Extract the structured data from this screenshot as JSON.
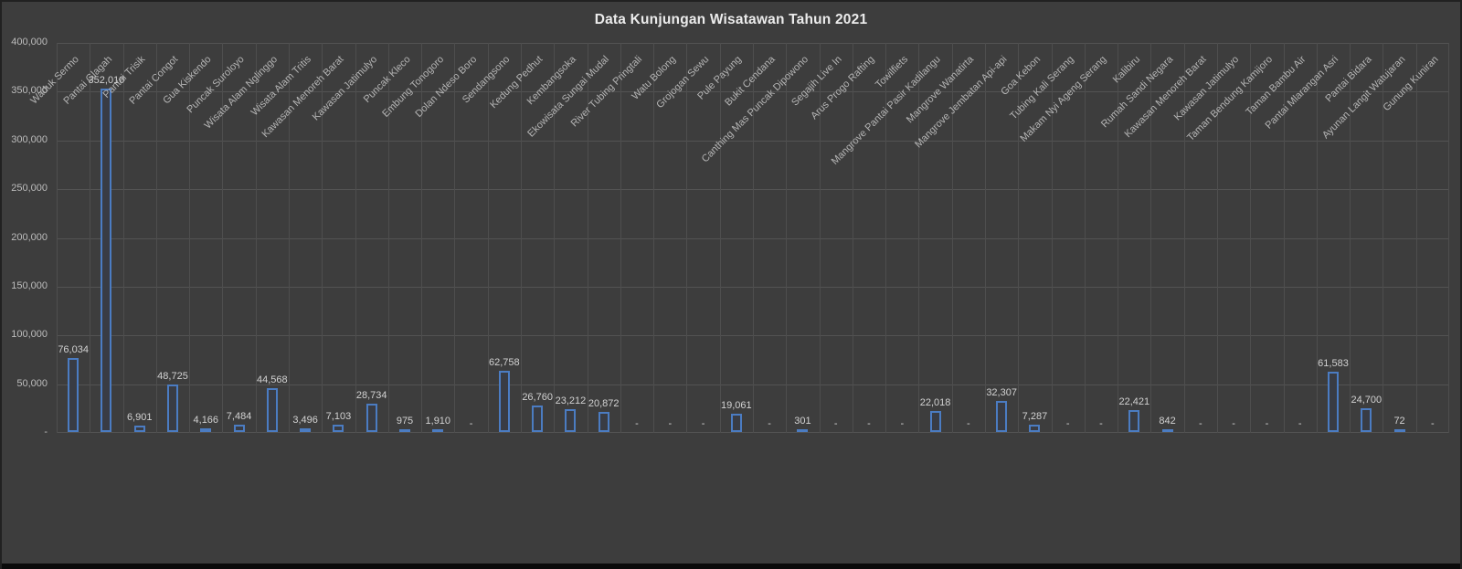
{
  "title": "Data Kunjungan Wisatawan Tahun 2021",
  "colors": {
    "background": "#3d3d3d",
    "frame_border": "#212121",
    "bottom_band": "#0b0b0b",
    "gridline": "#535353",
    "bar_border": "#4b7cc2",
    "bar_fill": "#393c44",
    "title_text": "#ececec",
    "axis_text": "#bcbcbc",
    "value_text": "#d2d2d2"
  },
  "chart_data": {
    "type": "bar",
    "title": "Data Kunjungan Wisatawan Tahun 2021",
    "xlabel": "",
    "ylabel": "",
    "ylim": [
      0,
      400000
    ],
    "y_tick_labels_top_down": [
      "400,000",
      "350,000",
      "300,000",
      "250,000",
      "200,000",
      "150,000",
      "100,000",
      "50,000",
      "-"
    ],
    "grid": true,
    "legend": false,
    "categories": [
      "Waduk Sermo",
      "Pantai Glagah",
      "Pantai Trisik",
      "Pantai Congot",
      "Gua Kiskendo",
      "Puncak Suroloyo",
      "Wisata Alam Nglinggo",
      "Wisata Alam Tritis",
      "Kawasan Menoreh Barat",
      "Kawasan Jatimulyo",
      "Puncak Kleco",
      "Embung Tonogoro",
      "Dolan Ndeso Boro",
      "Sendangsono",
      "Kedung Pedhut",
      "Kembangsoka",
      "Ekowisata Sungai Mudal",
      "River Tubing Pringtali",
      "Watu Bolong",
      "Grojogan Sewu",
      "Pule Payung",
      "Bukit Cendana",
      "Canthing Mas Puncak Dipowono",
      "Segajih Live In",
      "Arus Progo Rafting",
      "Towilfiets",
      "Mangrove Pantai Pasir Kadilangu",
      "Mangrove Wanatirta",
      "Mangrove Jembatan Api-api",
      "Goa Kebon",
      "Tubing Kali Serang",
      "Makam Nyi Ageng Serang",
      "Kalibiru",
      "Rumah Sandi Negara",
      "Kawasan Menoreh Barat",
      "Kawasan Jatimulyo",
      "Taman Bendung Kamijoro",
      "Taman Bambu Air",
      "Pantai Mlarangan Asri",
      "Pantai Bidara",
      "Ayunan Langit Watujaran",
      "Gunung Kuniran"
    ],
    "values": [
      76034,
      352010,
      6901,
      48725,
      4166,
      7484,
      44568,
      3496,
      7103,
      28734,
      975,
      1910,
      0,
      62758,
      26760,
      23212,
      20872,
      0,
      0,
      0,
      19061,
      0,
      301,
      0,
      0,
      0,
      22018,
      0,
      32307,
      7287,
      0,
      0,
      22421,
      842,
      0,
      0,
      0,
      0,
      61583,
      24700,
      72,
      0
    ],
    "value_labels": [
      "76,034",
      "352,010",
      "6,901",
      "48,725",
      "4,166",
      "7,484",
      "44,568",
      "3,496",
      "7,103",
      "28,734",
      "975",
      "1,910",
      "-",
      "62,758",
      "26,760",
      "23,212",
      "20,872",
      "-",
      "-",
      "-",
      "19,061",
      "-",
      "301",
      "-",
      "-",
      "-",
      "22,018",
      "-",
      "32,307",
      "7,287",
      "-",
      "-",
      "22,421",
      "842",
      "-",
      "-",
      "-",
      "-",
      "61,583",
      "24,700",
      "72",
      "-"
    ]
  }
}
